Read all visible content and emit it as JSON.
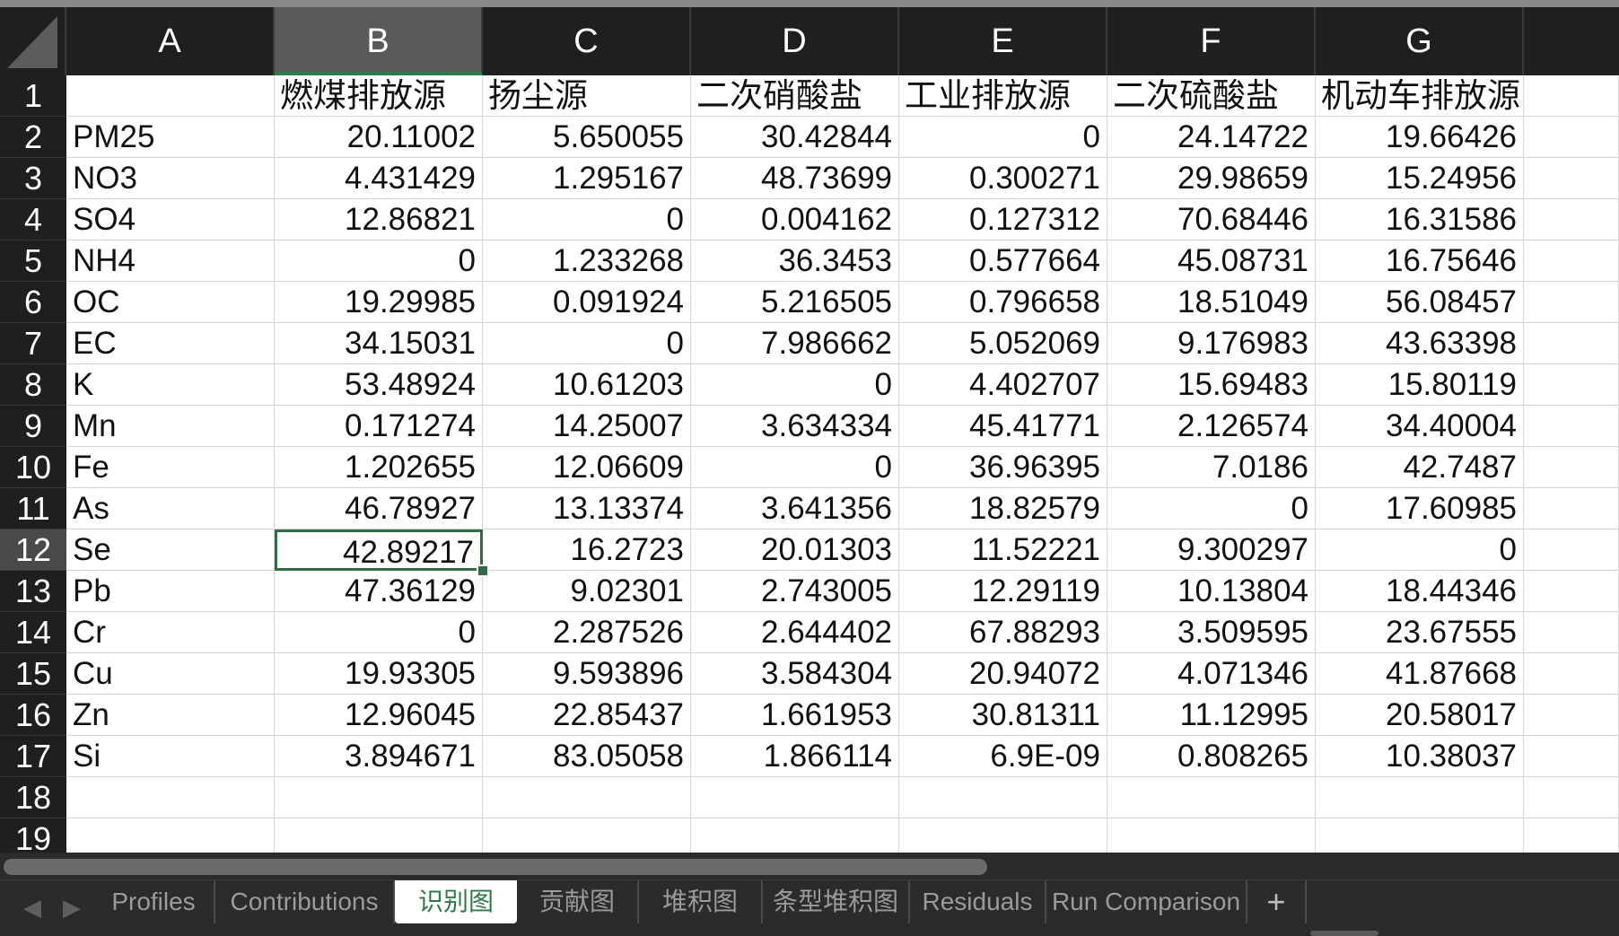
{
  "columns": [
    "A",
    "B",
    "C",
    "D",
    "E",
    "F",
    "G"
  ],
  "rows": [
    "1",
    "2",
    "3",
    "4",
    "5",
    "6",
    "7",
    "8",
    "9",
    "10",
    "11",
    "12",
    "13",
    "14",
    "15",
    "16",
    "17",
    "18",
    "19"
  ],
  "active_column": "B",
  "active_row": "12",
  "header_row": [
    "",
    "燃煤排放源",
    "扬尘源",
    "二次硝酸盐",
    "工业排放源",
    "二次硫酸盐",
    "机动车排放源"
  ],
  "data_rows": [
    [
      "PM25",
      "20.11002",
      "5.650055",
      "30.42844",
      "0",
      "24.14722",
      "19.66426"
    ],
    [
      "NO3",
      "4.431429",
      "1.295167",
      "48.73699",
      "0.300271",
      "29.98659",
      "15.24956"
    ],
    [
      "SO4",
      "12.86821",
      "0",
      "0.004162",
      "0.127312",
      "70.68446",
      "16.31586"
    ],
    [
      "NH4",
      "0",
      "1.233268",
      "36.3453",
      "0.577664",
      "45.08731",
      "16.75646"
    ],
    [
      "OC",
      "19.29985",
      "0.091924",
      "5.216505",
      "0.796658",
      "18.51049",
      "56.08457"
    ],
    [
      "EC",
      "34.15031",
      "0",
      "7.986662",
      "5.052069",
      "9.176983",
      "43.63398"
    ],
    [
      "K",
      "53.48924",
      "10.61203",
      "0",
      "4.402707",
      "15.69483",
      "15.80119"
    ],
    [
      "Mn",
      "0.171274",
      "14.25007",
      "3.634334",
      "45.41771",
      "2.126574",
      "34.40004"
    ],
    [
      "Fe",
      "1.202655",
      "12.06609",
      "0",
      "36.96395",
      "7.0186",
      "42.7487"
    ],
    [
      "As",
      "46.78927",
      "13.13374",
      "3.641356",
      "18.82579",
      "0",
      "17.60985"
    ],
    [
      "Se",
      "42.89217",
      "16.2723",
      "20.01303",
      "11.52221",
      "9.300297",
      "0"
    ],
    [
      "Pb",
      "47.36129",
      "9.02301",
      "2.743005",
      "12.29119",
      "10.13804",
      "18.44346"
    ],
    [
      "Cr",
      "0",
      "2.287526",
      "2.644402",
      "67.88293",
      "3.509595",
      "23.67555"
    ],
    [
      "Cu",
      "19.93305",
      "9.593896",
      "3.584304",
      "20.94072",
      "4.071346",
      "41.87668"
    ],
    [
      "Zn",
      "12.96045",
      "22.85437",
      "1.661953",
      "30.81311",
      "11.12995",
      "20.58017"
    ],
    [
      "Si",
      "3.894671",
      "83.05058",
      "1.866114",
      "6.9E-09",
      "0.808265",
      "10.38037"
    ]
  ],
  "selected_cell": {
    "row": 12,
    "col": "B"
  },
  "tabs": [
    {
      "label": "Profiles",
      "active": false
    },
    {
      "label": "Contributions",
      "active": false
    },
    {
      "label": "识别图",
      "active": true
    },
    {
      "label": "贡献图",
      "active": false
    },
    {
      "label": "堆积图",
      "active": false
    },
    {
      "label": "条型堆积图",
      "active": false
    },
    {
      "label": "Residuals",
      "active": false
    },
    {
      "label": "Run Comparison",
      "active": false
    }
  ],
  "tab_add_label": "+",
  "nav": {
    "prev": "◀",
    "next": "▶"
  },
  "colors": {
    "accent_green": "#2f7a4a",
    "header_bg": "#1f1f1f",
    "grid_line": "#d4d4d4"
  }
}
